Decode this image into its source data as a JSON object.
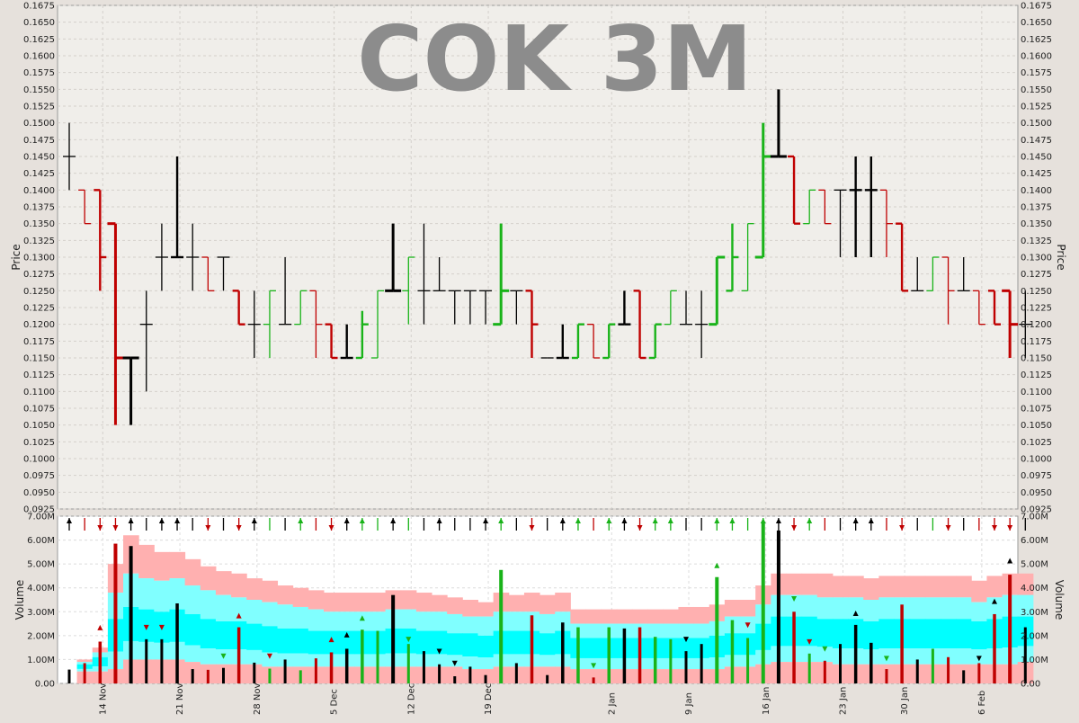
{
  "chart_data": {
    "type": "ohlc-volume",
    "title": "COK 3M",
    "price_axis": {
      "label": "Price",
      "range": [
        0.0925,
        0.1675
      ],
      "ticks": [
        "0.0925",
        "0.0950",
        "0.0975",
        "0.1000",
        "0.1025",
        "0.1050",
        "0.1075",
        "0.1100",
        "0.1125",
        "0.1150",
        "0.1175",
        "0.1200",
        "0.1225",
        "0.1250",
        "0.1275",
        "0.1300",
        "0.1325",
        "0.1350",
        "0.1375",
        "0.1400",
        "0.1425",
        "0.1450",
        "0.1475",
        "0.1500",
        "0.1525",
        "0.1550",
        "0.1575",
        "0.1600",
        "0.1625",
        "0.1650",
        "0.1675"
      ]
    },
    "volume_axis": {
      "label": "Volume",
      "range": [
        0,
        7000000
      ],
      "ticks": [
        "0.00",
        "1.00M",
        "2.00M",
        "3.00M",
        "4.00M",
        "5.00M",
        "6.00M",
        "7.00M"
      ],
      "tick_values": [
        0,
        1000000,
        2000000,
        3000000,
        4000000,
        5000000,
        6000000,
        7000000
      ]
    },
    "x_axis": {
      "labels": [
        {
          "text": "14 Nov",
          "index": 2
        },
        {
          "text": "21 Nov",
          "index": 7
        },
        {
          "text": "28 Nov",
          "index": 12
        },
        {
          "text": "5 Dec",
          "index": 17
        },
        {
          "text": "12 Dec",
          "index": 22
        },
        {
          "text": "19 Dec",
          "index": 27
        },
        {
          "text": "2 Jan",
          "index": 35
        },
        {
          "text": "9 Jan",
          "index": 40
        },
        {
          "text": "16 Jan",
          "index": 45
        },
        {
          "text": "23 Jan",
          "index": 50
        },
        {
          "text": "30 Jan",
          "index": 54
        },
        {
          "text": "6 Feb",
          "index": 59
        }
      ]
    },
    "colors": {
      "up": "#19b319",
      "down": "#bf0000",
      "flat": "#000000",
      "band_outer": "#ffb0b0",
      "band_mid": "#80ffff",
      "band_inner": "#00ffff"
    },
    "bars": [
      {
        "o": 0.145,
        "h": 0.15,
        "l": 0.14,
        "c": 0.145,
        "v": 580000,
        "w": 1
      },
      {
        "o": 0.14,
        "h": 0.14,
        "l": 0.135,
        "c": 0.135,
        "v": 850000,
        "w": 1
      },
      {
        "o": 0.14,
        "h": 0.14,
        "l": 0.125,
        "c": 0.13,
        "v": 1750000,
        "w": 2
      },
      {
        "o": 0.135,
        "h": 0.135,
        "l": 0.105,
        "c": 0.115,
        "v": 5850000,
        "w": 3
      },
      {
        "o": 0.115,
        "h": 0.115,
        "l": 0.105,
        "c": 0.115,
        "v": 5750000,
        "w": 3
      },
      {
        "o": 0.12,
        "h": 0.125,
        "l": 0.11,
        "c": 0.12,
        "v": 1850000,
        "w": 1
      },
      {
        "o": 0.13,
        "h": 0.135,
        "l": 0.125,
        "c": 0.13,
        "v": 1850000,
        "w": 1
      },
      {
        "o": 0.13,
        "h": 0.145,
        "l": 0.13,
        "c": 0.13,
        "v": 3350000,
        "w": 2
      },
      {
        "o": 0.13,
        "h": 0.135,
        "l": 0.125,
        "c": 0.13,
        "v": 600000,
        "w": 1
      },
      {
        "o": 0.13,
        "h": 0.13,
        "l": 0.125,
        "c": 0.125,
        "v": 570000,
        "w": 1
      },
      {
        "o": 0.13,
        "h": 0.13,
        "l": 0.125,
        "c": 0.13,
        "v": 650000,
        "w": 1
      },
      {
        "o": 0.125,
        "h": 0.125,
        "l": 0.12,
        "c": 0.12,
        "v": 2350000,
        "w": 2
      },
      {
        "o": 0.12,
        "h": 0.125,
        "l": 0.115,
        "c": 0.12,
        "v": 870000,
        "w": 1
      },
      {
        "o": 0.12,
        "h": 0.125,
        "l": 0.115,
        "c": 0.125,
        "v": 620000,
        "w": 1
      },
      {
        "o": 0.12,
        "h": 0.13,
        "l": 0.12,
        "c": 0.12,
        "v": 1000000,
        "w": 1
      },
      {
        "o": 0.12,
        "h": 0.125,
        "l": 0.12,
        "c": 0.125,
        "v": 550000,
        "w": 1
      },
      {
        "o": 0.125,
        "h": 0.125,
        "l": 0.115,
        "c": 0.12,
        "v": 1050000,
        "w": 1
      },
      {
        "o": 0.12,
        "h": 0.12,
        "l": 0.115,
        "c": 0.115,
        "v": 1300000,
        "w": 2
      },
      {
        "o": 0.115,
        "h": 0.12,
        "l": 0.115,
        "c": 0.115,
        "v": 1450000,
        "w": 2
      },
      {
        "o": 0.115,
        "h": 0.122,
        "l": 0.115,
        "c": 0.12,
        "v": 2250000,
        "w": 2
      },
      {
        "o": 0.115,
        "h": 0.125,
        "l": 0.115,
        "c": 0.125,
        "v": 2200000,
        "w": 1
      },
      {
        "o": 0.125,
        "h": 0.135,
        "l": 0.125,
        "c": 0.125,
        "v": 3700000,
        "w": 3
      },
      {
        "o": 0.125,
        "h": 0.13,
        "l": 0.12,
        "c": 0.13,
        "v": 1650000,
        "w": 1
      },
      {
        "o": 0.125,
        "h": 0.135,
        "l": 0.12,
        "c": 0.125,
        "v": 1350000,
        "w": 1
      },
      {
        "o": 0.125,
        "h": 0.13,
        "l": 0.125,
        "c": 0.125,
        "v": 800000,
        "w": 1
      },
      {
        "o": 0.125,
        "h": 0.125,
        "l": 0.12,
        "c": 0.125,
        "v": 300000,
        "w": 1
      },
      {
        "o": 0.125,
        "h": 0.125,
        "l": 0.12,
        "c": 0.125,
        "v": 700000,
        "w": 1
      },
      {
        "o": 0.125,
        "h": 0.125,
        "l": 0.12,
        "c": 0.125,
        "v": 350000,
        "w": 1
      },
      {
        "o": 0.12,
        "h": 0.135,
        "l": 0.12,
        "c": 0.125,
        "v": 4750000,
        "w": 3
      },
      {
        "o": 0.125,
        "h": 0.125,
        "l": 0.12,
        "c": 0.125,
        "v": 850000,
        "w": 1
      },
      {
        "o": 0.125,
        "h": 0.125,
        "l": 0.115,
        "c": 0.12,
        "v": 2850000,
        "w": 2
      },
      {
        "o": 0.115,
        "h": 0.115,
        "l": 0.115,
        "c": 0.115,
        "v": 350000,
        "w": 1
      },
      {
        "o": 0.115,
        "h": 0.12,
        "l": 0.115,
        "c": 0.115,
        "v": 2550000,
        "w": 2
      },
      {
        "o": 0.115,
        "h": 0.12,
        "l": 0.115,
        "c": 0.12,
        "v": 2350000,
        "w": 2
      },
      {
        "o": 0.12,
        "h": 0.12,
        "l": 0.115,
        "c": 0.115,
        "v": 250000,
        "w": 1
      },
      {
        "o": 0.115,
        "h": 0.12,
        "l": 0.115,
        "c": 0.12,
        "v": 2350000,
        "w": 2
      },
      {
        "o": 0.12,
        "h": 0.125,
        "l": 0.12,
        "c": 0.12,
        "v": 2300000,
        "w": 2
      },
      {
        "o": 0.125,
        "h": 0.125,
        "l": 0.115,
        "c": 0.115,
        "v": 2350000,
        "w": 2
      },
      {
        "o": 0.115,
        "h": 0.12,
        "l": 0.115,
        "c": 0.12,
        "v": 1950000,
        "w": 2
      },
      {
        "o": 0.12,
        "h": 0.125,
        "l": 0.12,
        "c": 0.125,
        "v": 1850000,
        "w": 1
      },
      {
        "o": 0.12,
        "h": 0.125,
        "l": 0.12,
        "c": 0.12,
        "v": 1350000,
        "w": 1
      },
      {
        "o": 0.12,
        "h": 0.125,
        "l": 0.115,
        "c": 0.12,
        "v": 1650000,
        "w": 1
      },
      {
        "o": 0.12,
        "h": 0.13,
        "l": 0.12,
        "c": 0.13,
        "v": 4450000,
        "w": 3
      },
      {
        "o": 0.125,
        "h": 0.135,
        "l": 0.125,
        "c": 0.13,
        "v": 2650000,
        "w": 2
      },
      {
        "o": 0.125,
        "h": 0.135,
        "l": 0.125,
        "c": 0.135,
        "v": 1900000,
        "w": 1
      },
      {
        "o": 0.13,
        "h": 0.15,
        "l": 0.13,
        "c": 0.145,
        "v": 6750000,
        "w": 3
      },
      {
        "o": 0.145,
        "h": 0.155,
        "l": 0.145,
        "c": 0.145,
        "v": 6400000,
        "w": 3
      },
      {
        "o": 0.145,
        "h": 0.145,
        "l": 0.135,
        "c": 0.135,
        "v": 3000000,
        "w": 2
      },
      {
        "o": 0.135,
        "h": 0.14,
        "l": 0.135,
        "c": 0.14,
        "v": 1250000,
        "w": 1
      },
      {
        "o": 0.14,
        "h": 0.14,
        "l": 0.135,
        "c": 0.135,
        "v": 950000,
        "w": 1
      },
      {
        "o": 0.14,
        "h": 0.14,
        "l": 0.13,
        "c": 0.14,
        "v": 1650000,
        "w": 1
      },
      {
        "o": 0.14,
        "h": 0.145,
        "l": 0.13,
        "c": 0.14,
        "v": 2450000,
        "w": 2
      },
      {
        "o": 0.14,
        "h": 0.145,
        "l": 0.13,
        "c": 0.14,
        "v": 1700000,
        "w": 2
      },
      {
        "o": 0.14,
        "h": 0.14,
        "l": 0.13,
        "c": 0.135,
        "v": 600000,
        "w": 1
      },
      {
        "o": 0.135,
        "h": 0.135,
        "l": 0.125,
        "c": 0.125,
        "v": 3300000,
        "w": 2
      },
      {
        "o": 0.125,
        "h": 0.13,
        "l": 0.125,
        "c": 0.125,
        "v": 1000000,
        "w": 1
      },
      {
        "o": 0.125,
        "h": 0.13,
        "l": 0.125,
        "c": 0.13,
        "v": 1450000,
        "w": 1
      },
      {
        "o": 0.13,
        "h": 0.13,
        "l": 0.12,
        "c": 0.125,
        "v": 1100000,
        "w": 1
      },
      {
        "o": 0.125,
        "h": 0.13,
        "l": 0.125,
        "c": 0.125,
        "v": 550000,
        "w": 1
      },
      {
        "o": 0.125,
        "h": 0.125,
        "l": 0.12,
        "c": 0.12,
        "v": 850000,
        "w": 1
      },
      {
        "o": 0.125,
        "h": 0.125,
        "l": 0.12,
        "c": 0.12,
        "v": 2900000,
        "w": 2
      },
      {
        "o": 0.125,
        "h": 0.125,
        "l": 0.115,
        "c": 0.12,
        "v": 4550000,
        "w": 3
      },
      {
        "o": 0.12,
        "h": 0.125,
        "l": 0.115,
        "c": 0.12,
        "v": 2350000,
        "w": 1
      }
    ],
    "bands": [
      {
        "u": 0,
        "m": 0,
        "i": 0,
        "lo": 0
      },
      {
        "u": 1000000,
        "m": 900000,
        "i": 800000,
        "lo": 500000
      },
      {
        "u": 1500000,
        "m": 1300000,
        "i": 1100000,
        "lo": 500000
      },
      {
        "u": 5000000,
        "m": 3800000,
        "i": 2700000,
        "lo": 600000
      },
      {
        "u": 6200000,
        "m": 4600000,
        "i": 3200000,
        "lo": 1000000
      },
      {
        "u": 5800000,
        "m": 4400000,
        "i": 3100000,
        "lo": 1000000
      },
      {
        "u": 5500000,
        "m": 4300000,
        "i": 3000000,
        "lo": 1000000
      },
      {
        "u": 5500000,
        "m": 4400000,
        "i": 3100000,
        "lo": 1000000
      },
      {
        "u": 5200000,
        "m": 4100000,
        "i": 2900000,
        "lo": 900000
      },
      {
        "u": 4900000,
        "m": 3900000,
        "i": 2700000,
        "lo": 800000
      },
      {
        "u": 4700000,
        "m": 3700000,
        "i": 2600000,
        "lo": 800000
      },
      {
        "u": 4600000,
        "m": 3600000,
        "i": 2600000,
        "lo": 800000
      },
      {
        "u": 4400000,
        "m": 3500000,
        "i": 2500000,
        "lo": 800000
      },
      {
        "u": 4300000,
        "m": 3400000,
        "i": 2400000,
        "lo": 700000
      },
      {
        "u": 4100000,
        "m": 3300000,
        "i": 2300000,
        "lo": 700000
      },
      {
        "u": 4000000,
        "m": 3200000,
        "i": 2300000,
        "lo": 700000
      },
      {
        "u": 3900000,
        "m": 3100000,
        "i": 2200000,
        "lo": 700000
      },
      {
        "u": 3800000,
        "m": 3000000,
        "i": 2200000,
        "lo": 700000
      },
      {
        "u": 3800000,
        "m": 3000000,
        "i": 2200000,
        "lo": 700000
      },
      {
        "u": 3800000,
        "m": 3000000,
        "i": 2200000,
        "lo": 700000
      },
      {
        "u": 3800000,
        "m": 3000000,
        "i": 2200000,
        "lo": 700000
      },
      {
        "u": 3900000,
        "m": 3100000,
        "i": 2300000,
        "lo": 700000
      },
      {
        "u": 3900000,
        "m": 3100000,
        "i": 2300000,
        "lo": 700000
      },
      {
        "u": 3800000,
        "m": 3000000,
        "i": 2200000,
        "lo": 700000
      },
      {
        "u": 3700000,
        "m": 3000000,
        "i": 2200000,
        "lo": 700000
      },
      {
        "u": 3600000,
        "m": 2900000,
        "i": 2100000,
        "lo": 700000
      },
      {
        "u": 3500000,
        "m": 2800000,
        "i": 2100000,
        "lo": 600000
      },
      {
        "u": 3400000,
        "m": 2800000,
        "i": 2000000,
        "lo": 600000
      },
      {
        "u": 3800000,
        "m": 3000000,
        "i": 2200000,
        "lo": 700000
      },
      {
        "u": 3700000,
        "m": 3000000,
        "i": 2200000,
        "lo": 700000
      },
      {
        "u": 3800000,
        "m": 3000000,
        "i": 2200000,
        "lo": 700000
      },
      {
        "u": 3700000,
        "m": 2900000,
        "i": 2100000,
        "lo": 700000
      },
      {
        "u": 3800000,
        "m": 3000000,
        "i": 2200000,
        "lo": 700000
      },
      {
        "u": 3100000,
        "m": 2500000,
        "i": 1900000,
        "lo": 600000
      },
      {
        "u": 3100000,
        "m": 2500000,
        "i": 1900000,
        "lo": 600000
      },
      {
        "u": 3100000,
        "m": 2500000,
        "i": 1900000,
        "lo": 600000
      },
      {
        "u": 3100000,
        "m": 2500000,
        "i": 1900000,
        "lo": 600000
      },
      {
        "u": 3100000,
        "m": 2500000,
        "i": 1900000,
        "lo": 600000
      },
      {
        "u": 3100000,
        "m": 2500000,
        "i": 1900000,
        "lo": 600000
      },
      {
        "u": 3100000,
        "m": 2500000,
        "i": 1900000,
        "lo": 600000
      },
      {
        "u": 3200000,
        "m": 2500000,
        "i": 1900000,
        "lo": 600000
      },
      {
        "u": 3200000,
        "m": 2500000,
        "i": 1900000,
        "lo": 600000
      },
      {
        "u": 3300000,
        "m": 2600000,
        "i": 2000000,
        "lo": 600000
      },
      {
        "u": 3500000,
        "m": 2800000,
        "i": 2100000,
        "lo": 700000
      },
      {
        "u": 3500000,
        "m": 2800000,
        "i": 2100000,
        "lo": 700000
      },
      {
        "u": 4100000,
        "m": 3300000,
        "i": 2500000,
        "lo": 800000
      },
      {
        "u": 4600000,
        "m": 3700000,
        "i": 2800000,
        "lo": 900000
      },
      {
        "u": 4600000,
        "m": 3700000,
        "i": 2800000,
        "lo": 900000
      },
      {
        "u": 4600000,
        "m": 3700000,
        "i": 2800000,
        "lo": 900000
      },
      {
        "u": 4600000,
        "m": 3600000,
        "i": 2700000,
        "lo": 900000
      },
      {
        "u": 4500000,
        "m": 3600000,
        "i": 2700000,
        "lo": 800000
      },
      {
        "u": 4500000,
        "m": 3600000,
        "i": 2700000,
        "lo": 800000
      },
      {
        "u": 4400000,
        "m": 3500000,
        "i": 2600000,
        "lo": 800000
      },
      {
        "u": 4500000,
        "m": 3600000,
        "i": 2700000,
        "lo": 800000
      },
      {
        "u": 4500000,
        "m": 3600000,
        "i": 2700000,
        "lo": 800000
      },
      {
        "u": 4500000,
        "m": 3600000,
        "i": 2700000,
        "lo": 800000
      },
      {
        "u": 4500000,
        "m": 3600000,
        "i": 2700000,
        "lo": 800000
      },
      {
        "u": 4500000,
        "m": 3600000,
        "i": 2700000,
        "lo": 800000
      },
      {
        "u": 4500000,
        "m": 3600000,
        "i": 2700000,
        "lo": 800000
      },
      {
        "u": 4300000,
        "m": 3400000,
        "i": 2600000,
        "lo": 800000
      },
      {
        "u": 4500000,
        "m": 3600000,
        "i": 2700000,
        "lo": 800000
      },
      {
        "u": 4600000,
        "m": 3700000,
        "i": 2800000,
        "lo": 800000
      },
      {
        "u": 4600000,
        "m": 3700000,
        "i": 2800000,
        "lo": 900000
      }
    ],
    "markers": [
      {
        "index": 2,
        "color": "#bf0000",
        "dir": "up",
        "v": 2300000
      },
      {
        "index": 5,
        "color": "#bf0000",
        "dir": "down",
        "v": 2300000
      },
      {
        "index": 6,
        "color": "#bf0000",
        "dir": "down",
        "v": 2300000
      },
      {
        "index": 11,
        "color": "#bf0000",
        "dir": "up",
        "v": 2800000
      },
      {
        "index": 13,
        "color": "#bf0000",
        "dir": "down",
        "v": 1100000
      },
      {
        "index": 17,
        "color": "#bf0000",
        "dir": "up",
        "v": 1800000
      },
      {
        "index": 18,
        "color": "#000000",
        "dir": "up",
        "v": 2000000
      },
      {
        "index": 19,
        "color": "#19b319",
        "dir": "up",
        "v": 2700000
      },
      {
        "index": 10,
        "color": "#19b319",
        "dir": "down",
        "v": 1100000
      },
      {
        "index": 22,
        "color": "#19b319",
        "dir": "down",
        "v": 1800000
      },
      {
        "index": 24,
        "color": "#000000",
        "dir": "down",
        "v": 1300000
      },
      {
        "index": 25,
        "color": "#000000",
        "dir": "down",
        "v": 800000
      },
      {
        "index": 34,
        "color": "#19b319",
        "dir": "down",
        "v": 700000
      },
      {
        "index": 40,
        "color": "#000000",
        "dir": "down",
        "v": 1800000
      },
      {
        "index": 42,
        "color": "#19b319",
        "dir": "up",
        "v": 4900000
      },
      {
        "index": 44,
        "color": "#bf0000",
        "dir": "down",
        "v": 2400000
      },
      {
        "index": 47,
        "color": "#19b319",
        "dir": "down",
        "v": 3500000
      },
      {
        "index": 48,
        "color": "#bf0000",
        "dir": "down",
        "v": 1700000
      },
      {
        "index": 49,
        "color": "#19b319",
        "dir": "down",
        "v": 1400000
      },
      {
        "index": 51,
        "color": "#000000",
        "dir": "up",
        "v": 2900000
      },
      {
        "index": 53,
        "color": "#19b319",
        "dir": "down",
        "v": 1000000
      },
      {
        "index": 59,
        "color": "#000000",
        "dir": "down",
        "v": 1000000
      },
      {
        "index": 60,
        "color": "#000000",
        "dir": "up",
        "v": 3400000
      },
      {
        "index": 61,
        "color": "#000000",
        "dir": "up",
        "v": 5100000
      }
    ]
  }
}
